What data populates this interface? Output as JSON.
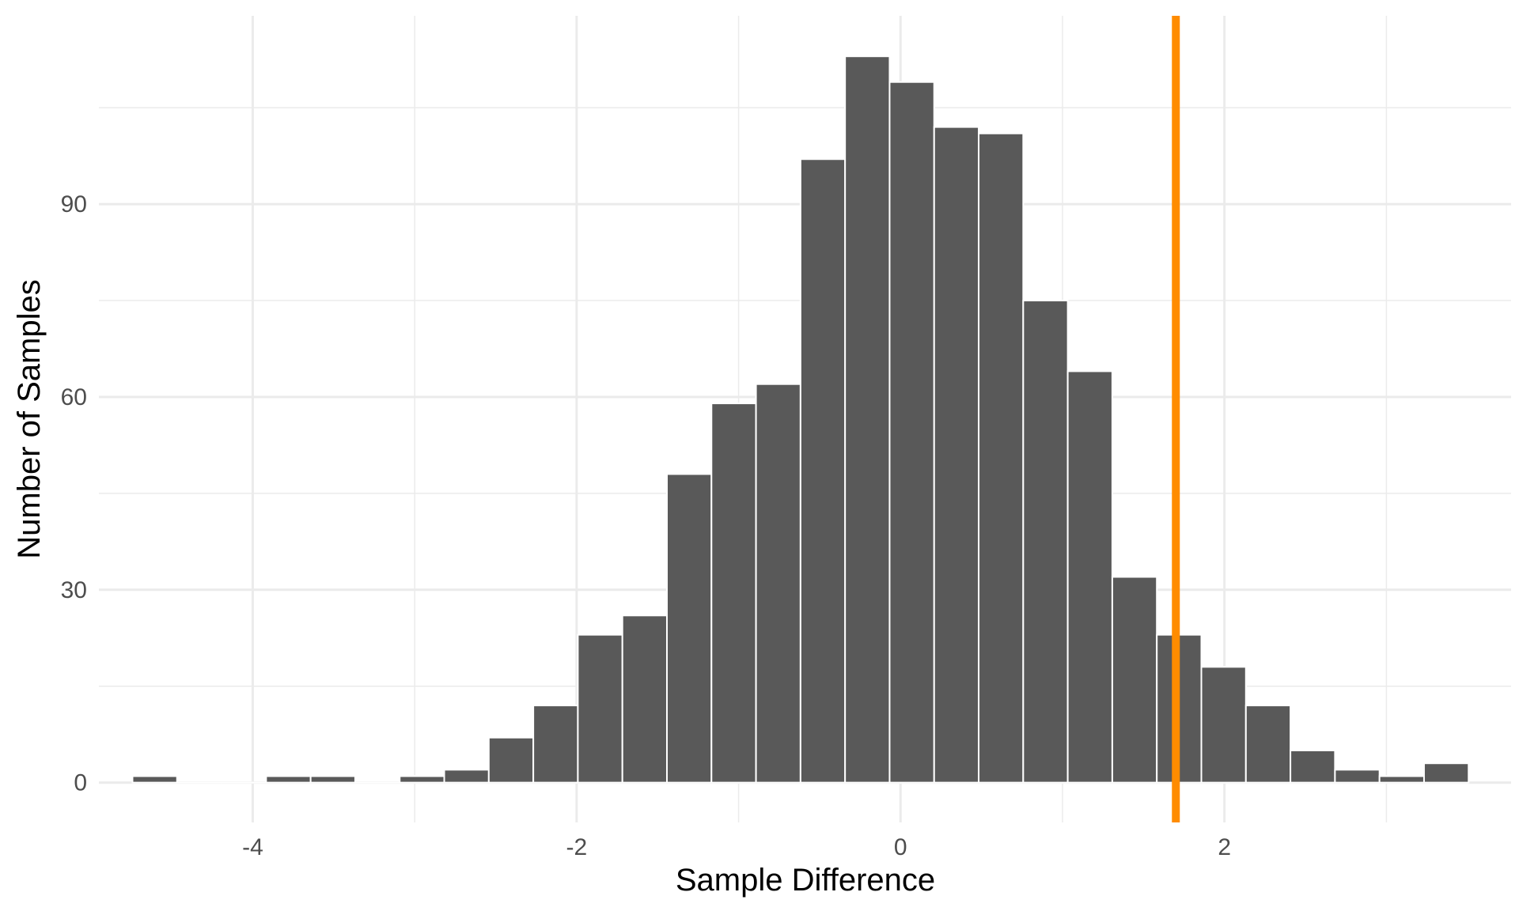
{
  "chart_data": {
    "type": "bar",
    "subtype": "histogram",
    "title": "",
    "xlabel": "Sample Difference",
    "ylabel": "Number of Samples",
    "bin_width": 0.275,
    "bin_centers": [
      -4.605,
      -4.33,
      -4.055,
      -3.78,
      -3.505,
      -3.23,
      -2.955,
      -2.68,
      -2.405,
      -2.13,
      -1.855,
      -1.58,
      -1.305,
      -1.03,
      -0.755,
      -0.48,
      -0.205,
      0.07,
      0.345,
      0.62,
      0.895,
      1.17,
      1.445,
      1.72,
      1.995,
      2.27,
      2.545,
      2.82,
      3.095,
      3.37
    ],
    "values": [
      1,
      0,
      0,
      1,
      1,
      0,
      1,
      2,
      7,
      12,
      23,
      26,
      48,
      59,
      62,
      97,
      113,
      109,
      102,
      101,
      75,
      64,
      32,
      23,
      18,
      12,
      5,
      2,
      1,
      3
    ],
    "xlim": [
      -4.95,
      3.77
    ],
    "ylim": [
      -6.2,
      119.3
    ],
    "x_ticks": [
      -4,
      -2,
      0,
      2
    ],
    "x_tick_labels": [
      "-4",
      "-2",
      "0",
      "2"
    ],
    "y_ticks": [
      0,
      30,
      60,
      90
    ],
    "y_tick_labels": [
      "0",
      "30",
      "60",
      "90"
    ],
    "reference_line": {
      "x": 1.7,
      "color": "#FF8C00"
    },
    "bar_color": "#595959",
    "bar_outline": "#ffffff",
    "grid": true,
    "legend": "none"
  }
}
